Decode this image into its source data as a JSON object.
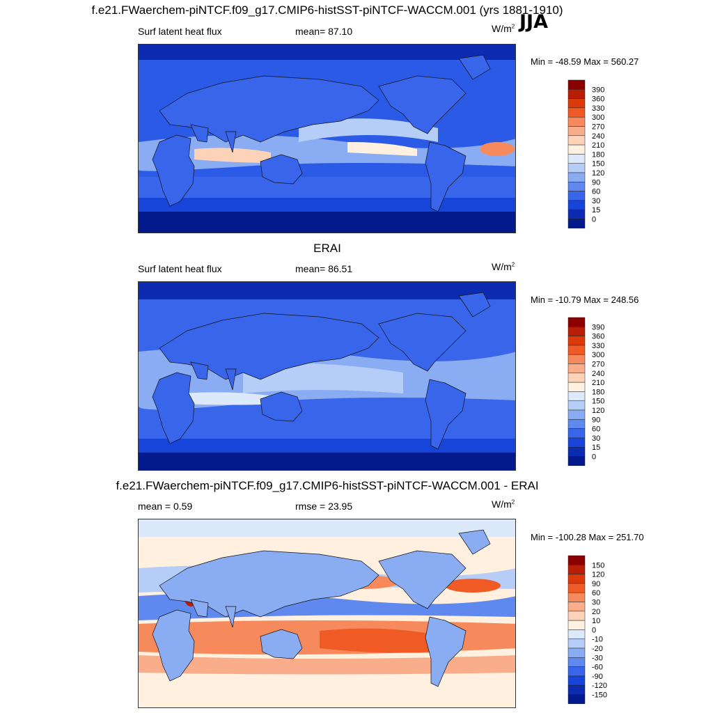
{
  "season": "JJA",
  "panels": [
    {
      "title": "f.e21.FWaerchem-piNTCF.f09_g17.CMIP6-histSST-piNTCF-WACCM.001 (yrs 1881-1910)",
      "left_label": "Surf latent heat flux",
      "mid_label": "mean=  87.10",
      "units": "W/m",
      "units_sup": "2",
      "minmax": "Min = -48.59 Max = 560.27",
      "colorbar": {
        "levels": [
          "390",
          "360",
          "330",
          "300",
          "270",
          "240",
          "210",
          "180",
          "150",
          "120",
          "90",
          "60",
          "30",
          "15",
          "0"
        ],
        "colors": [
          "#8b0000",
          "#b81d05",
          "#dc3a0b",
          "#f05a25",
          "#f78a5c",
          "#faad8b",
          "#fcd2b8",
          "#fff0e0",
          "#dce9fb",
          "#b6cdf7",
          "#8aacf2",
          "#5f89ee",
          "#3865ea",
          "#1744d9",
          "#0c2bb0",
          "#021a8c"
        ]
      },
      "chart_data": {
        "type": "heatmap",
        "variable": "Surf latent heat flux",
        "units": "W/m2",
        "mean": 87.1,
        "min": -48.59,
        "max": 560.27,
        "contour_levels": [
          0,
          15,
          30,
          60,
          90,
          120,
          150,
          180,
          210,
          240,
          270,
          300,
          330,
          360,
          390
        ]
      }
    },
    {
      "title": "ERAI",
      "left_label": "Surf latent heat flux",
      "mid_label": "mean=  86.51",
      "units": "W/m",
      "units_sup": "2",
      "minmax": "Min = -10.79 Max = 248.56",
      "colorbar": {
        "levels": [
          "390",
          "360",
          "330",
          "300",
          "270",
          "240",
          "210",
          "180",
          "150",
          "120",
          "90",
          "60",
          "30",
          "15",
          "0"
        ],
        "colors": [
          "#8b0000",
          "#b81d05",
          "#dc3a0b",
          "#f05a25",
          "#f78a5c",
          "#faad8b",
          "#fcd2b8",
          "#fff0e0",
          "#dce9fb",
          "#b6cdf7",
          "#8aacf2",
          "#5f89ee",
          "#3865ea",
          "#1744d9",
          "#0c2bb0",
          "#021a8c"
        ]
      },
      "chart_data": {
        "type": "heatmap",
        "variable": "Surf latent heat flux",
        "units": "W/m2",
        "mean": 86.51,
        "min": -10.79,
        "max": 248.56,
        "contour_levels": [
          0,
          15,
          30,
          60,
          90,
          120,
          150,
          180,
          210,
          240,
          270,
          300,
          330,
          360,
          390
        ]
      }
    },
    {
      "title": "f.e21.FWaerchem-piNTCF.f09_g17.CMIP6-histSST-piNTCF-WACCM.001 - ERAI",
      "left_label": "mean =   0.59",
      "mid_label": "rmse =  23.95",
      "units": "W/m",
      "units_sup": "2",
      "minmax": "Min = -100.28 Max = 251.70",
      "colorbar": {
        "levels": [
          "150",
          "120",
          "90",
          "60",
          "30",
          "20",
          "10",
          "0",
          "-10",
          "-20",
          "-30",
          "-60",
          "-90",
          "-120",
          "-150"
        ],
        "colors": [
          "#8b0000",
          "#b81d05",
          "#dc3a0b",
          "#f05a25",
          "#f78a5c",
          "#faad8b",
          "#fcd2b8",
          "#fff0e0",
          "#dce9fb",
          "#b6cdf7",
          "#8aacf2",
          "#5f89ee",
          "#3865ea",
          "#1744d9",
          "#0c2bb0",
          "#021a8c"
        ]
      },
      "chart_data": {
        "type": "heatmap",
        "variable": "difference",
        "units": "W/m2",
        "mean": 0.59,
        "rmse": 23.95,
        "min": -100.28,
        "max": 251.7,
        "contour_levels": [
          -150,
          -120,
          -90,
          -60,
          -30,
          -20,
          -10,
          0,
          10,
          20,
          30,
          60,
          90,
          120,
          150
        ]
      }
    }
  ]
}
